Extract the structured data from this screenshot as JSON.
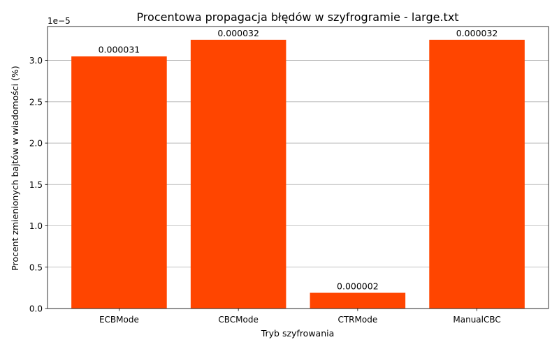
{
  "chart_data": {
    "type": "bar",
    "title": "Procentowa propagacja błędów w szyfrogramie - large.txt",
    "xlabel": "Tryb szyfrowania",
    "ylabel": "Procent zmienionych bajtów w wiadomości (%)",
    "offset_text": "1e−5",
    "categories": [
      "ECBMode",
      "CBCMode",
      "CTRMode",
      "ManualCBC"
    ],
    "values": [
      3.05e-05,
      3.25e-05,
      1.9e-06,
      3.25e-05
    ],
    "value_labels": [
      "0.000031",
      "0.000032",
      "0.000002",
      "0.000032"
    ],
    "ylim": [
      0,
      3.41e-05
    ],
    "yticks": [
      0,
      5e-06,
      1e-05,
      1.5e-05,
      2e-05,
      2.5e-05,
      3e-05
    ],
    "ytick_labels": [
      "0.0",
      "0.5",
      "1.0",
      "1.5",
      "2.0",
      "2.5",
      "3.0"
    ],
    "bar_color": "#ff4500",
    "grid": "y",
    "legend": "none"
  }
}
